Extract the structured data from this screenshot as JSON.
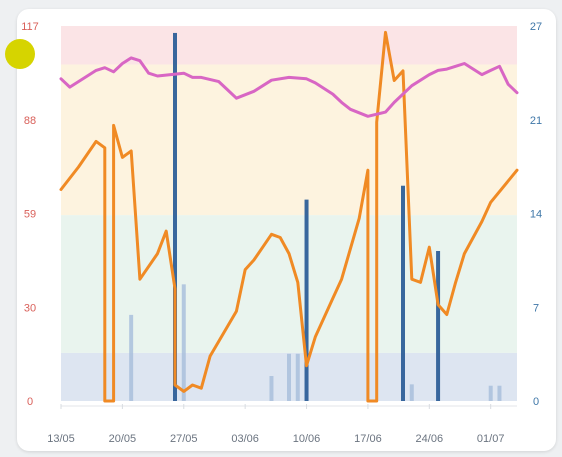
{
  "chart_data": {
    "type": "line",
    "title": "",
    "xlabel": "",
    "ylabel": "",
    "y_left": {
      "ticks": [
        "0",
        "30",
        "59",
        "88",
        "117"
      ],
      "range": [
        0,
        117
      ],
      "color": "#d9605a"
    },
    "y_right": {
      "ticks": [
        "0",
        "7",
        "14",
        "21",
        "27"
      ],
      "range": [
        0,
        27
      ],
      "color": "#3f77a8"
    },
    "x_ticks": [
      "13/05",
      "20/05",
      "27/05",
      "03/06",
      "10/06",
      "17/06",
      "24/06",
      "01/07"
    ],
    "x_start": "2024-05-13",
    "x_end": "2024-07-04",
    "grid": false,
    "legend": "none",
    "zone_colors": {
      "red": "#fbe4e6",
      "yellow": "#fdf3df",
      "green": "#e9f4ee",
      "blue": "#dde5f1"
    },
    "zones": [
      {
        "color": "blue",
        "from": 0,
        "to": 15
      },
      {
        "color": "green",
        "from": 15,
        "to": 58
      },
      {
        "color": "yellow",
        "from": 58,
        "to": 105
      },
      {
        "color": "red",
        "from": 105,
        "to": 117
      }
    ],
    "series": [
      {
        "type": "line",
        "axis": "left",
        "color": "#f08a24",
        "points": [
          [
            "2024-05-13",
            66
          ],
          [
            "2024-05-15",
            73
          ],
          [
            "2024-05-17",
            81
          ],
          [
            "2024-05-18",
            79
          ],
          [
            "2024-05-18",
            0
          ],
          [
            "2024-05-19",
            0
          ],
          [
            "2024-05-19",
            86
          ],
          [
            "2024-05-20",
            76
          ],
          [
            "2024-05-21",
            78
          ],
          [
            "2024-05-22",
            38
          ],
          [
            "2024-05-24",
            46
          ],
          [
            "2024-05-25",
            53
          ],
          [
            "2024-05-26",
            35
          ],
          [
            "2024-05-26",
            5
          ],
          [
            "2024-05-27",
            3
          ],
          [
            "2024-05-28",
            5
          ],
          [
            "2024-05-29",
            4
          ],
          [
            "2024-05-30",
            14
          ],
          [
            "2024-06-02",
            28
          ],
          [
            "2024-06-03",
            41
          ],
          [
            "2024-06-04",
            44
          ],
          [
            "2024-06-05",
            48
          ],
          [
            "2024-06-06",
            52
          ],
          [
            "2024-06-07",
            51
          ],
          [
            "2024-06-08",
            46
          ],
          [
            "2024-06-09",
            37
          ],
          [
            "2024-06-10",
            11
          ],
          [
            "2024-06-11",
            20
          ],
          [
            "2024-06-13",
            32
          ],
          [
            "2024-06-14",
            38
          ],
          [
            "2024-06-16",
            57
          ],
          [
            "2024-06-17",
            72
          ],
          [
            "2024-06-17",
            0
          ],
          [
            "2024-06-18",
            0
          ],
          [
            "2024-06-18",
            87
          ],
          [
            "2024-06-19",
            115
          ],
          [
            "2024-06-20",
            100
          ],
          [
            "2024-06-21",
            103
          ],
          [
            "2024-06-22",
            38
          ],
          [
            "2024-06-23",
            37
          ],
          [
            "2024-06-24",
            48
          ],
          [
            "2024-06-25",
            30
          ],
          [
            "2024-06-26",
            27
          ],
          [
            "2024-06-27",
            37
          ],
          [
            "2024-06-28",
            46
          ],
          [
            "2024-06-30",
            56
          ],
          [
            "2024-07-01",
            62
          ],
          [
            "2024-07-04",
            72
          ]
        ]
      },
      {
        "type": "line",
        "axis": "right",
        "color": "#d866c4",
        "points": [
          [
            "2024-05-13",
            23.2
          ],
          [
            "2024-05-14",
            22.6
          ],
          [
            "2024-05-16",
            23.4
          ],
          [
            "2024-05-17",
            23.8
          ],
          [
            "2024-05-18",
            24.0
          ],
          [
            "2024-05-19",
            23.7
          ],
          [
            "2024-05-20",
            24.3
          ],
          [
            "2024-05-21",
            24.7
          ],
          [
            "2024-05-22",
            24.5
          ],
          [
            "2024-05-23",
            23.6
          ],
          [
            "2024-05-24",
            23.4
          ],
          [
            "2024-05-27",
            23.6
          ],
          [
            "2024-05-28",
            23.3
          ],
          [
            "2024-05-29",
            23.3
          ],
          [
            "2024-05-31",
            23.0
          ],
          [
            "2024-06-01",
            22.4
          ],
          [
            "2024-06-02",
            21.8
          ],
          [
            "2024-06-04",
            22.3
          ],
          [
            "2024-06-06",
            23.1
          ],
          [
            "2024-06-08",
            23.3
          ],
          [
            "2024-06-10",
            23.2
          ],
          [
            "2024-06-11",
            22.9
          ],
          [
            "2024-06-13",
            22.1
          ],
          [
            "2024-06-14",
            21.5
          ],
          [
            "2024-06-15",
            21.0
          ],
          [
            "2024-06-17",
            20.5
          ],
          [
            "2024-06-19",
            20.8
          ],
          [
            "2024-06-20",
            21.5
          ],
          [
            "2024-06-22",
            22.7
          ],
          [
            "2024-06-24",
            23.5
          ],
          [
            "2024-06-25",
            23.8
          ],
          [
            "2024-06-26",
            23.9
          ],
          [
            "2024-06-27",
            24.1
          ],
          [
            "2024-06-28",
            24.3
          ],
          [
            "2024-06-30",
            23.5
          ],
          [
            "2024-07-01",
            23.8
          ],
          [
            "2024-07-02",
            24.1
          ],
          [
            "2024-07-03",
            22.8
          ],
          [
            "2024-07-04",
            22.2
          ]
        ]
      },
      {
        "type": "bar",
        "axis": "right",
        "color": "#4a7fb8",
        "points": [
          [
            "2024-05-21",
            6.2
          ],
          [
            "2024-05-26",
            26.5
          ],
          [
            "2024-05-27",
            8.4
          ],
          [
            "2024-06-06",
            1.8
          ],
          [
            "2024-06-08",
            3.4
          ],
          [
            "2024-06-09",
            3.4
          ],
          [
            "2024-06-10",
            14.5
          ],
          [
            "2024-06-21",
            15.5
          ],
          [
            "2024-06-22",
            1.2
          ],
          [
            "2024-06-25",
            10.8
          ],
          [
            "2024-07-01",
            1.1
          ],
          [
            "2024-07-02",
            1.1
          ]
        ]
      }
    ]
  }
}
